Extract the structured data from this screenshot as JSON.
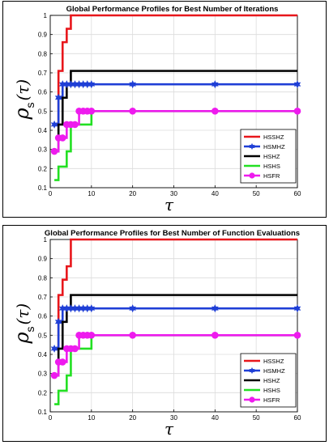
{
  "chart_data": [
    {
      "type": "line",
      "title": "Global Performance Profiles for Best Number of Iterations",
      "xlabel": "τ",
      "ylabel_main": "ρ",
      "ylabel_sub": "s",
      "ylabel_arg": "(τ)",
      "xlim": [
        0,
        60
      ],
      "ylim": [
        0.1,
        1.0
      ],
      "xticks": [
        0,
        10,
        20,
        30,
        40,
        50,
        60
      ],
      "yticks": [
        0.1,
        0.2,
        0.3,
        0.4,
        0.5,
        0.6,
        0.7,
        0.8,
        0.9,
        1.0
      ],
      "grid": true,
      "legend_position": "bottom-right",
      "series": [
        {
          "name": "HSSHZ",
          "color": "#e8161b",
          "marker": "none",
          "x": [
            1,
            2,
            3,
            4,
            5,
            60
          ],
          "y": [
            0.43,
            0.71,
            0.86,
            0.93,
            1.0,
            1.0
          ]
        },
        {
          "name": "HSMHZ",
          "color": "#1f3fd6",
          "marker": "star",
          "x": [
            1,
            2,
            3,
            4,
            5,
            6,
            7,
            8,
            9,
            10,
            20,
            40,
            60
          ],
          "y": [
            0.43,
            0.57,
            0.64,
            0.64,
            0.64,
            0.64,
            0.64,
            0.64,
            0.64,
            0.64,
            0.64,
            0.64,
            0.64
          ]
        },
        {
          "name": "HSHZ",
          "color": "#000000",
          "marker": "none",
          "x": [
            1,
            2,
            3,
            4,
            5,
            60
          ],
          "y": [
            0.29,
            0.43,
            0.57,
            0.64,
            0.71,
            0.71
          ]
        },
        {
          "name": "HSHS",
          "color": "#22e022",
          "marker": "none",
          "x": [
            1,
            2,
            3,
            4,
            5,
            6,
            7,
            8,
            9,
            10,
            60
          ],
          "y": [
            0.14,
            0.21,
            0.21,
            0.29,
            0.43,
            0.43,
            0.43,
            0.43,
            0.43,
            0.5,
            0.5
          ]
        },
        {
          "name": "HSFR",
          "color": "#ee1bee",
          "marker": "circle",
          "x": [
            1,
            2,
            3,
            4,
            5,
            6,
            7,
            8,
            9,
            10,
            20,
            40,
            60
          ],
          "y": [
            0.29,
            0.36,
            0.36,
            0.43,
            0.43,
            0.43,
            0.5,
            0.5,
            0.5,
            0.5,
            0.5,
            0.5,
            0.5
          ]
        }
      ]
    },
    {
      "type": "line",
      "title": "Global Performance Profiles for Best Number of Function Evaluations",
      "xlabel": "τ",
      "ylabel_main": "ρ",
      "ylabel_sub": "s",
      "ylabel_arg": "(τ)",
      "xlim": [
        0,
        60
      ],
      "ylim": [
        0.1,
        1.0
      ],
      "xticks": [
        0,
        10,
        20,
        30,
        40,
        50,
        60
      ],
      "yticks": [
        0.1,
        0.2,
        0.3,
        0.4,
        0.5,
        0.6,
        0.7,
        0.8,
        0.9,
        1.0
      ],
      "grid": true,
      "legend_position": "bottom-right",
      "series": [
        {
          "name": "HSSHZ",
          "color": "#e8161b",
          "marker": "none",
          "x": [
            1,
            2,
            3,
            4,
            5,
            60
          ],
          "y": [
            0.43,
            0.71,
            0.79,
            0.86,
            1.0,
            1.0
          ]
        },
        {
          "name": "HSMHZ",
          "color": "#1f3fd6",
          "marker": "star",
          "x": [
            1,
            2,
            3,
            4,
            5,
            6,
            7,
            8,
            9,
            10,
            20,
            40,
            60
          ],
          "y": [
            0.43,
            0.57,
            0.64,
            0.64,
            0.64,
            0.64,
            0.64,
            0.64,
            0.64,
            0.64,
            0.64,
            0.64,
            0.64
          ]
        },
        {
          "name": "HSHZ",
          "color": "#000000",
          "marker": "none",
          "x": [
            1,
            2,
            3,
            4,
            5,
            60
          ],
          "y": [
            0.29,
            0.43,
            0.57,
            0.64,
            0.71,
            0.71
          ]
        },
        {
          "name": "HSHS",
          "color": "#22e022",
          "marker": "none",
          "x": [
            1,
            2,
            3,
            4,
            5,
            6,
            7,
            8,
            9,
            10,
            60
          ],
          "y": [
            0.14,
            0.21,
            0.21,
            0.29,
            0.43,
            0.43,
            0.43,
            0.43,
            0.43,
            0.5,
            0.5
          ]
        },
        {
          "name": "HSFR",
          "color": "#ee1bee",
          "marker": "circle",
          "x": [
            1,
            2,
            3,
            4,
            5,
            6,
            7,
            8,
            9,
            10,
            20,
            40,
            60
          ],
          "y": [
            0.29,
            0.36,
            0.36,
            0.43,
            0.43,
            0.43,
            0.5,
            0.5,
            0.5,
            0.5,
            0.5,
            0.5,
            0.5
          ]
        }
      ]
    }
  ]
}
